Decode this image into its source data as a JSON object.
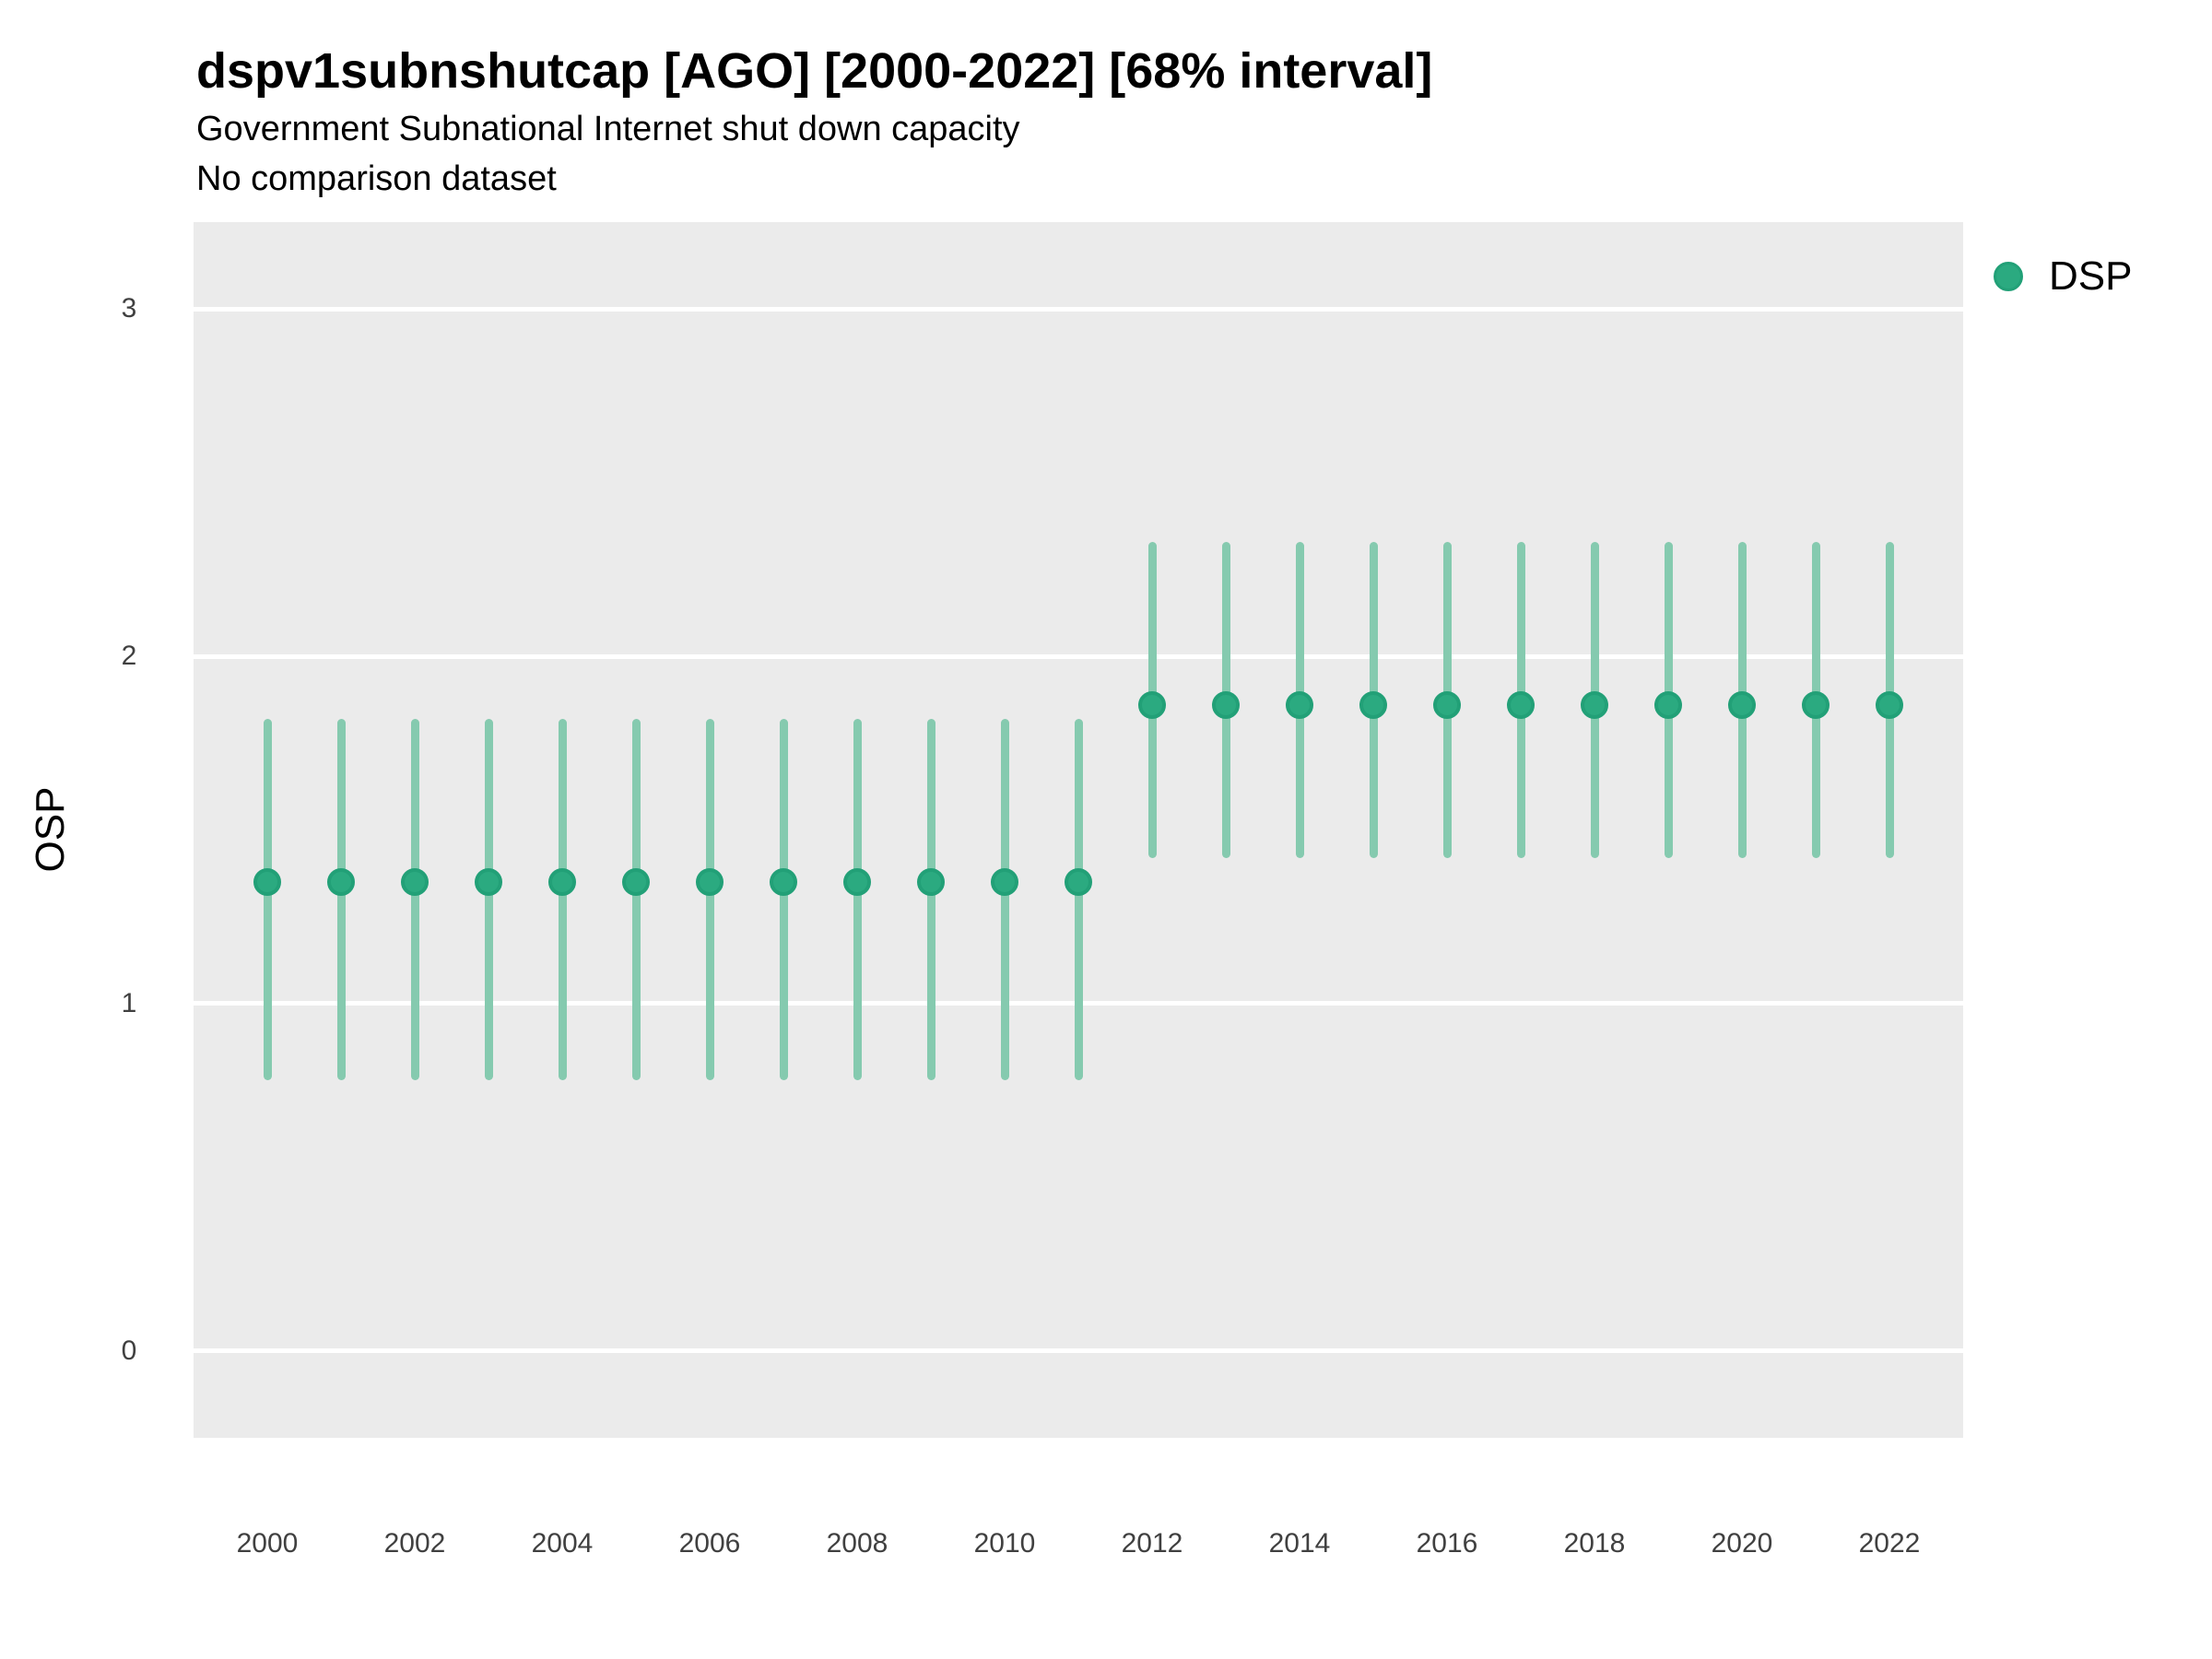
{
  "header": {
    "title": "dspv1subnshutcap [AGO] [2000-2022] [68% interval]",
    "subtitle": "Government Subnational Internet shut down capacity",
    "note": "No comparison dataset"
  },
  "legend": {
    "position": "right-top",
    "items": [
      {
        "label": "DSP",
        "color": "#2BAA80",
        "border_color": "#22A077",
        "marker": "circle-icon"
      }
    ]
  },
  "colors": {
    "page_bg": "#FFFFFF",
    "panel_bg": "#EBEBEB",
    "gridline": "#FFFFFF",
    "interval_bar": "#85CAAF",
    "point_fill": "#2BAA80",
    "point_stroke": "#22A077",
    "title_text": "#000000",
    "tick_text": "#404040"
  },
  "chart_data": {
    "type": "scatter",
    "title": "dspv1subnshutcap [AGO] [2000-2022] [68% interval]",
    "subtitle": "Government Subnational Internet shut down capacity",
    "note": "No comparison dataset",
    "xlabel": "",
    "ylabel": "OSP",
    "interval_level": "68%",
    "xlim": [
      1999,
      2023
    ],
    "ylim": [
      -0.25,
      3.25
    ],
    "xticks": [
      2000,
      2002,
      2004,
      2006,
      2008,
      2010,
      2012,
      2014,
      2016,
      2018,
      2020,
      2022
    ],
    "yticks": [
      0,
      1,
      2,
      3
    ],
    "grid": "horizontal-major-only",
    "legend_position": "right-top",
    "series": [
      {
        "name": "DSP",
        "points": [
          {
            "x": 2000,
            "y": 1.35,
            "lo": 0.78,
            "hi": 1.82
          },
          {
            "x": 2001,
            "y": 1.35,
            "lo": 0.78,
            "hi": 1.82
          },
          {
            "x": 2002,
            "y": 1.35,
            "lo": 0.78,
            "hi": 1.82
          },
          {
            "x": 2003,
            "y": 1.35,
            "lo": 0.78,
            "hi": 1.82
          },
          {
            "x": 2004,
            "y": 1.35,
            "lo": 0.78,
            "hi": 1.82
          },
          {
            "x": 2005,
            "y": 1.35,
            "lo": 0.78,
            "hi": 1.82
          },
          {
            "x": 2006,
            "y": 1.35,
            "lo": 0.78,
            "hi": 1.82
          },
          {
            "x": 2007,
            "y": 1.35,
            "lo": 0.78,
            "hi": 1.82
          },
          {
            "x": 2008,
            "y": 1.35,
            "lo": 0.78,
            "hi": 1.82
          },
          {
            "x": 2009,
            "y": 1.35,
            "lo": 0.78,
            "hi": 1.82
          },
          {
            "x": 2010,
            "y": 1.35,
            "lo": 0.78,
            "hi": 1.82
          },
          {
            "x": 2011,
            "y": 1.35,
            "lo": 0.78,
            "hi": 1.82
          },
          {
            "x": 2012,
            "y": 1.86,
            "lo": 1.42,
            "hi": 2.33
          },
          {
            "x": 2013,
            "y": 1.86,
            "lo": 1.42,
            "hi": 2.33
          },
          {
            "x": 2014,
            "y": 1.86,
            "lo": 1.42,
            "hi": 2.33
          },
          {
            "x": 2015,
            "y": 1.86,
            "lo": 1.42,
            "hi": 2.33
          },
          {
            "x": 2016,
            "y": 1.86,
            "lo": 1.42,
            "hi": 2.33
          },
          {
            "x": 2017,
            "y": 1.86,
            "lo": 1.42,
            "hi": 2.33
          },
          {
            "x": 2018,
            "y": 1.86,
            "lo": 1.42,
            "hi": 2.33
          },
          {
            "x": 2019,
            "y": 1.86,
            "lo": 1.42,
            "hi": 2.33
          },
          {
            "x": 2020,
            "y": 1.86,
            "lo": 1.42,
            "hi": 2.33
          },
          {
            "x": 2021,
            "y": 1.86,
            "lo": 1.42,
            "hi": 2.33
          },
          {
            "x": 2022,
            "y": 1.86,
            "lo": 1.42,
            "hi": 2.33
          }
        ]
      }
    ]
  }
}
